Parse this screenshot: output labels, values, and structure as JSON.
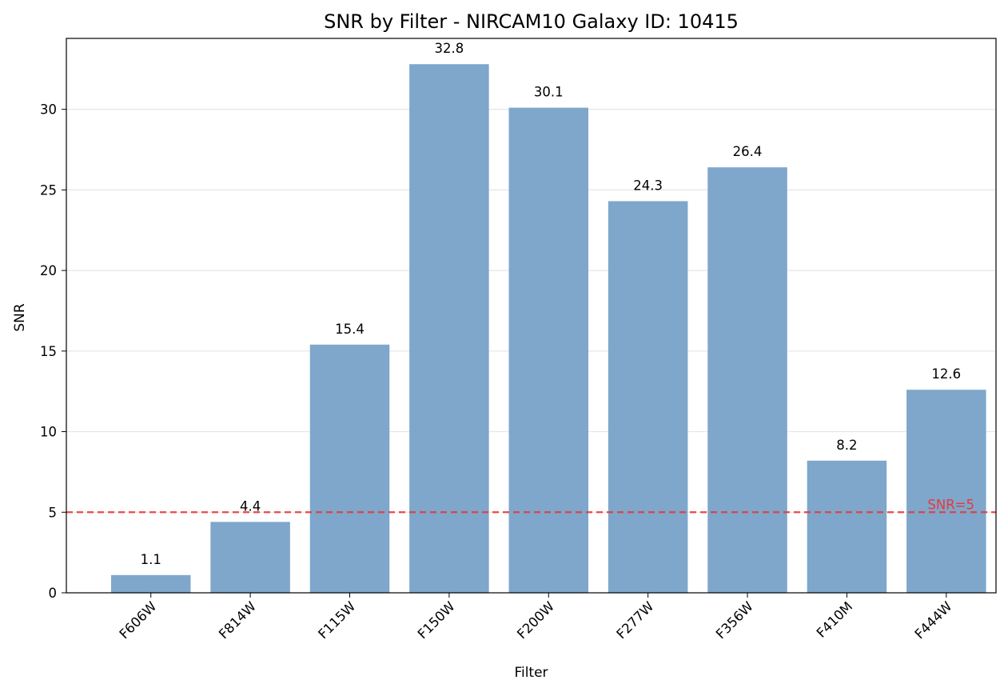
{
  "chart_data": {
    "type": "bar",
    "title": "SNR by Filter - NIRCAM10 Galaxy ID: 10415",
    "xlabel": "Filter",
    "ylabel": "SNR",
    "categories": [
      "F606W",
      "F814W",
      "F115W",
      "F150W",
      "F200W",
      "F277W",
      "F356W",
      "F410M",
      "F444W"
    ],
    "values": [
      1.1,
      4.4,
      15.4,
      32.8,
      30.1,
      24.3,
      26.4,
      8.2,
      12.6
    ],
    "data_labels": [
      "1.1",
      "4.4",
      "15.4",
      "32.8",
      "30.1",
      "24.3",
      "26.4",
      "8.2",
      "12.6"
    ],
    "ylim": [
      0,
      34.4
    ],
    "yticks": [
      0,
      5,
      10,
      15,
      20,
      25,
      30
    ],
    "grid": "y",
    "bar_color": "#7ea7cb",
    "reference_line": {
      "value": 5,
      "label": "SNR=5",
      "color": "#e8383a",
      "style": "dashed"
    }
  }
}
